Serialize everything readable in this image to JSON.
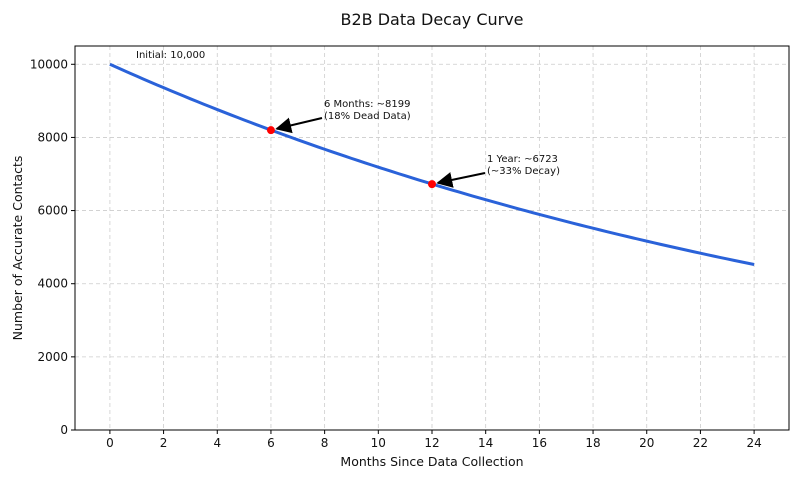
{
  "chart_data": {
    "type": "line",
    "title": "B2B Data Decay Curve",
    "xlabel": "Months Since Data Collection",
    "ylabel": "Number of Accurate Contacts",
    "xlim": [
      -1.3,
      25.3
    ],
    "ylim": [
      0,
      10500
    ],
    "xticks": [
      0,
      2,
      4,
      6,
      8,
      10,
      12,
      14,
      16,
      18,
      20,
      22,
      24
    ],
    "yticks": [
      0,
      2000,
      4000,
      6000,
      8000,
      10000
    ],
    "grid": true,
    "line_color": "#2a62d9",
    "marker_color": "#ff0000",
    "series": [
      {
        "initial": 10000,
        "monthly_retention": 0.9675,
        "x": [
          0,
          2,
          4,
          6,
          8,
          10,
          12,
          14,
          16,
          18,
          20,
          22,
          24
        ],
        "values": [
          10000,
          9361,
          8762,
          8199,
          7675,
          7184,
          6723,
          6293,
          5891,
          5514,
          5161,
          4831,
          4520
        ]
      }
    ],
    "points": [
      {
        "x": 6,
        "y": 8199
      },
      {
        "x": 12,
        "y": 6723
      }
    ],
    "annotations": [
      {
        "lines": [
          "Initial: 10,000"
        ]
      },
      {
        "lines": [
          "6 Months: ~8199",
          "(18% Dead Data)"
        ]
      },
      {
        "lines": [
          "1 Year: ~6723",
          "(~33% Decay)"
        ]
      }
    ]
  }
}
